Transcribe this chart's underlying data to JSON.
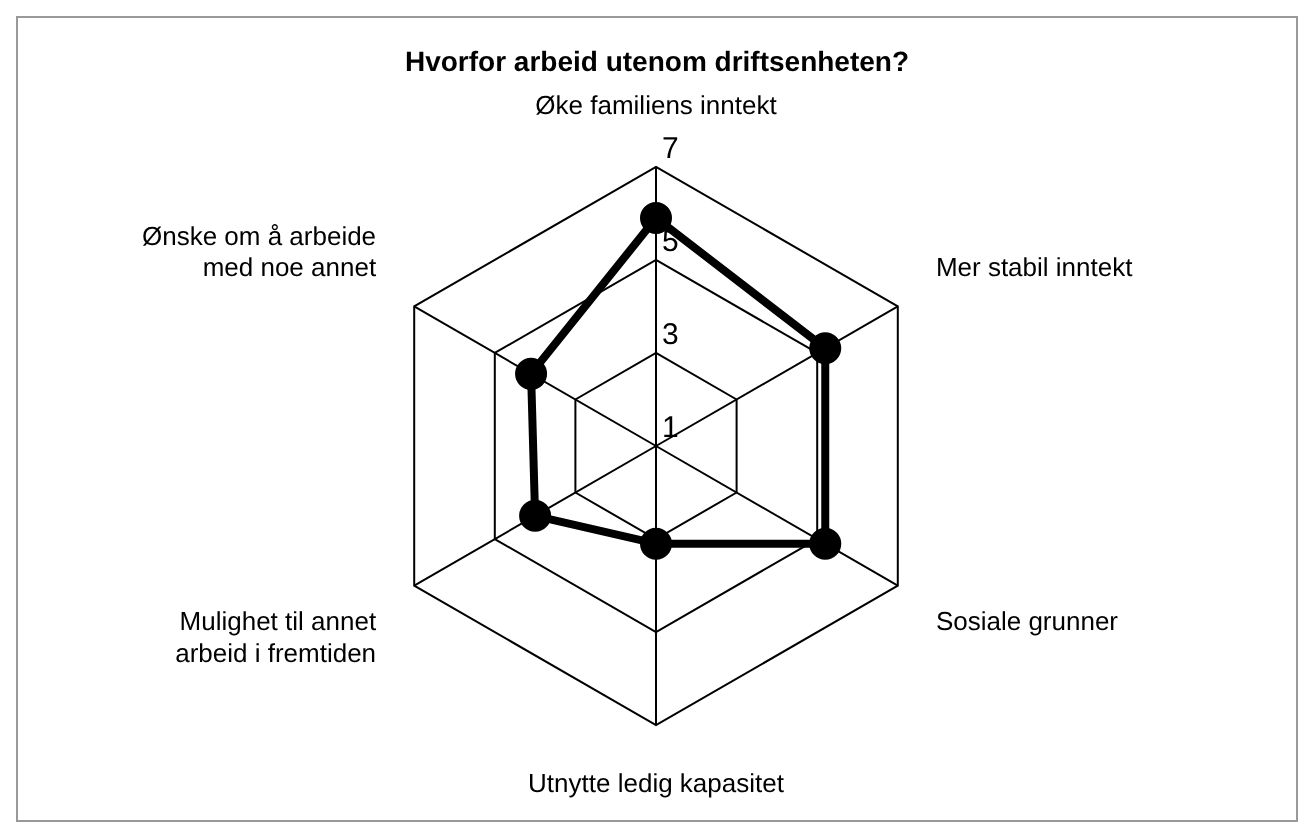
{
  "chart_data": {
    "type": "radar",
    "title": "Hvorfor arbeid utenom driftsenheten?",
    "categories": [
      "Øke familiens inntekt",
      "Mer stabil inntekt",
      "Sosiale grunner",
      "Utnytte ledig kapasitet",
      "Mulighet til annet arbeid i fremtiden",
      "Ønske om å arbeide med noe annet"
    ],
    "series": [
      {
        "color": "#000000",
        "values": [
          5.9,
          5.2,
          5.2,
          3.1,
          4.0,
          4.1
        ]
      }
    ],
    "ylim": [
      1,
      7
    ],
    "yticks": [
      1,
      3,
      5,
      7
    ],
    "grid": true,
    "legend": false,
    "marker": "circle",
    "line_style": "solid"
  }
}
